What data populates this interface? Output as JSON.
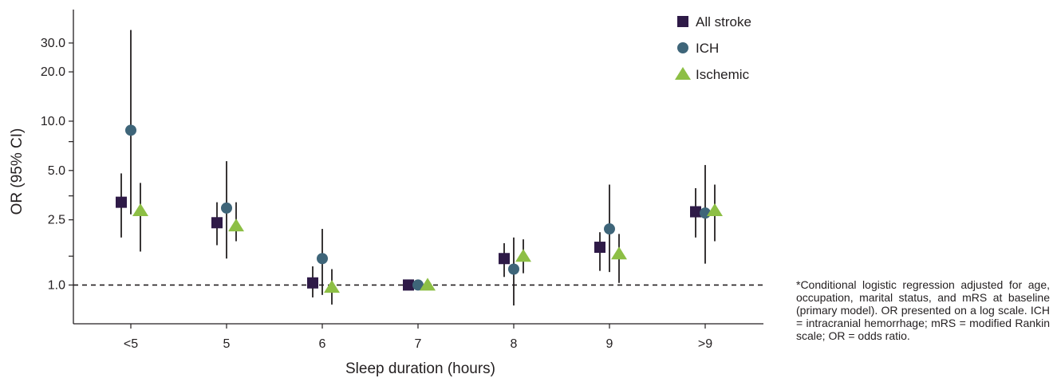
{
  "chart_data": {
    "type": "scatter",
    "title": "",
    "xlabel": "Sleep duration (hours)",
    "ylabel": "OR (95% CI)",
    "yscale": "log",
    "ylim": [
      0.58,
      48
    ],
    "categories": [
      "<5",
      "5",
      "6",
      "7",
      "8",
      "9",
      ">9"
    ],
    "yticks": [
      {
        "value": 1.0,
        "label": "1.0"
      },
      {
        "value": 2.5,
        "label": "2.5"
      },
      {
        "value": 5.0,
        "label": "5.0"
      },
      {
        "value": 10.0,
        "label": "10.0"
      },
      {
        "value": 20.0,
        "label": "20.0"
      },
      {
        "value": 30.0,
        "label": "30.0"
      }
    ],
    "minor_yticks": [
      1.5,
      3.5,
      7.5
    ],
    "reference_line": {
      "y": 1.0,
      "style": "dashed"
    },
    "grid": false,
    "legend_position": "top-right",
    "series": [
      {
        "name": "All stroke",
        "marker": "square",
        "color": "#2e1a47",
        "values": [
          3.2,
          2.4,
          1.03,
          1.0,
          1.45,
          1.7,
          2.8
        ],
        "ci_low": [
          1.95,
          1.75,
          0.84,
          1.0,
          1.12,
          1.22,
          1.95
        ],
        "ci_high": [
          4.8,
          3.2,
          1.3,
          1.0,
          1.8,
          2.1,
          3.9
        ]
      },
      {
        "name": "ICH",
        "marker": "circle",
        "color": "#3e6579",
        "values": [
          8.8,
          2.95,
          1.45,
          1.0,
          1.25,
          2.2,
          2.75
        ],
        "ci_low": [
          2.7,
          1.45,
          0.87,
          1.0,
          0.75,
          1.2,
          1.35
        ],
        "ci_high": [
          36.0,
          5.7,
          2.2,
          1.0,
          1.95,
          4.1,
          5.4
        ]
      },
      {
        "name": "Ischemic",
        "marker": "triangle",
        "color": "#8dbf45",
        "values": [
          2.85,
          2.3,
          0.97,
          1.0,
          1.5,
          1.55,
          2.85
        ],
        "ci_low": [
          1.6,
          1.85,
          0.76,
          1.0,
          1.18,
          1.03,
          1.85
        ],
        "ci_high": [
          4.2,
          3.2,
          1.25,
          1.0,
          1.9,
          2.05,
          4.1
        ]
      }
    ]
  },
  "footnote": "*Conditional logistic regression adjusted for age, occupation, marital status, and mRS at baseline (primary model). OR presented on a log scale. ICH = intracranial hemorrhage; mRS = modified Rankin scale; OR = odds ratio."
}
